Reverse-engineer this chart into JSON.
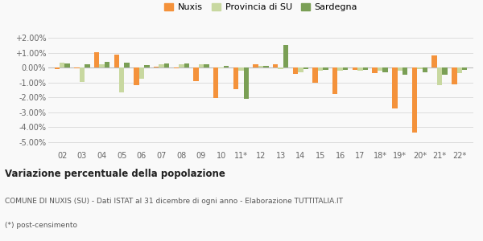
{
  "categories": [
    "02",
    "03",
    "04",
    "05",
    "06",
    "07",
    "08",
    "09",
    "10",
    "11*",
    "12",
    "13",
    "14",
    "15",
    "16",
    "17",
    "18*",
    "19*",
    "20*",
    "21*",
    "22*"
  ],
  "nuxis": [
    -0.1,
    -0.05,
    1.05,
    0.85,
    -1.2,
    0.05,
    -0.05,
    -0.9,
    -2.05,
    -1.45,
    0.2,
    0.25,
    -0.45,
    -1.0,
    -1.8,
    -0.15,
    -0.35,
    -2.75,
    -4.35,
    0.8,
    -1.1
  ],
  "provincia_su": [
    0.35,
    -0.95,
    0.25,
    -1.65,
    -0.75,
    0.2,
    0.25,
    0.2,
    -0.05,
    -0.2,
    0.12,
    -0.1,
    -0.3,
    -0.2,
    -0.2,
    -0.2,
    -0.2,
    -0.2,
    -0.12,
    -1.2,
    -0.35
  ],
  "sardegna": [
    0.3,
    0.25,
    0.4,
    0.35,
    0.18,
    0.28,
    0.28,
    0.22,
    0.1,
    -2.1,
    0.1,
    1.5,
    -0.1,
    -0.15,
    -0.15,
    -0.15,
    -0.3,
    -0.5,
    -0.3,
    -0.5,
    -0.15
  ],
  "nuxis_color": "#f4923b",
  "provincia_su_color": "#c8d8a0",
  "sardegna_color": "#7a9f55",
  "bg_color": "#f9f9f9",
  "grid_color": "#dddddd",
  "title": "Variazione percentuale della popolazione",
  "subtitle": "COMUNE DI NUXIS (SU) - Dati ISTAT al 31 dicembre di ogni anno - Elaborazione TUTTITALIA.IT",
  "footnote": "(*) post-censimento",
  "ylim": [
    -5.5,
    2.6
  ],
  "yticks": [
    -5.0,
    -4.0,
    -3.0,
    -2.0,
    -1.0,
    0.0,
    1.0,
    2.0
  ],
  "ytick_labels": [
    "-5.00%",
    "-4.00%",
    "-3.00%",
    "-2.00%",
    "-1.00%",
    "0.00%",
    "+1.00%",
    "+2.00%"
  ],
  "bar_width": 0.26,
  "legend_labels": [
    "Nuxis",
    "Provincia di SU",
    "Sardegna"
  ]
}
